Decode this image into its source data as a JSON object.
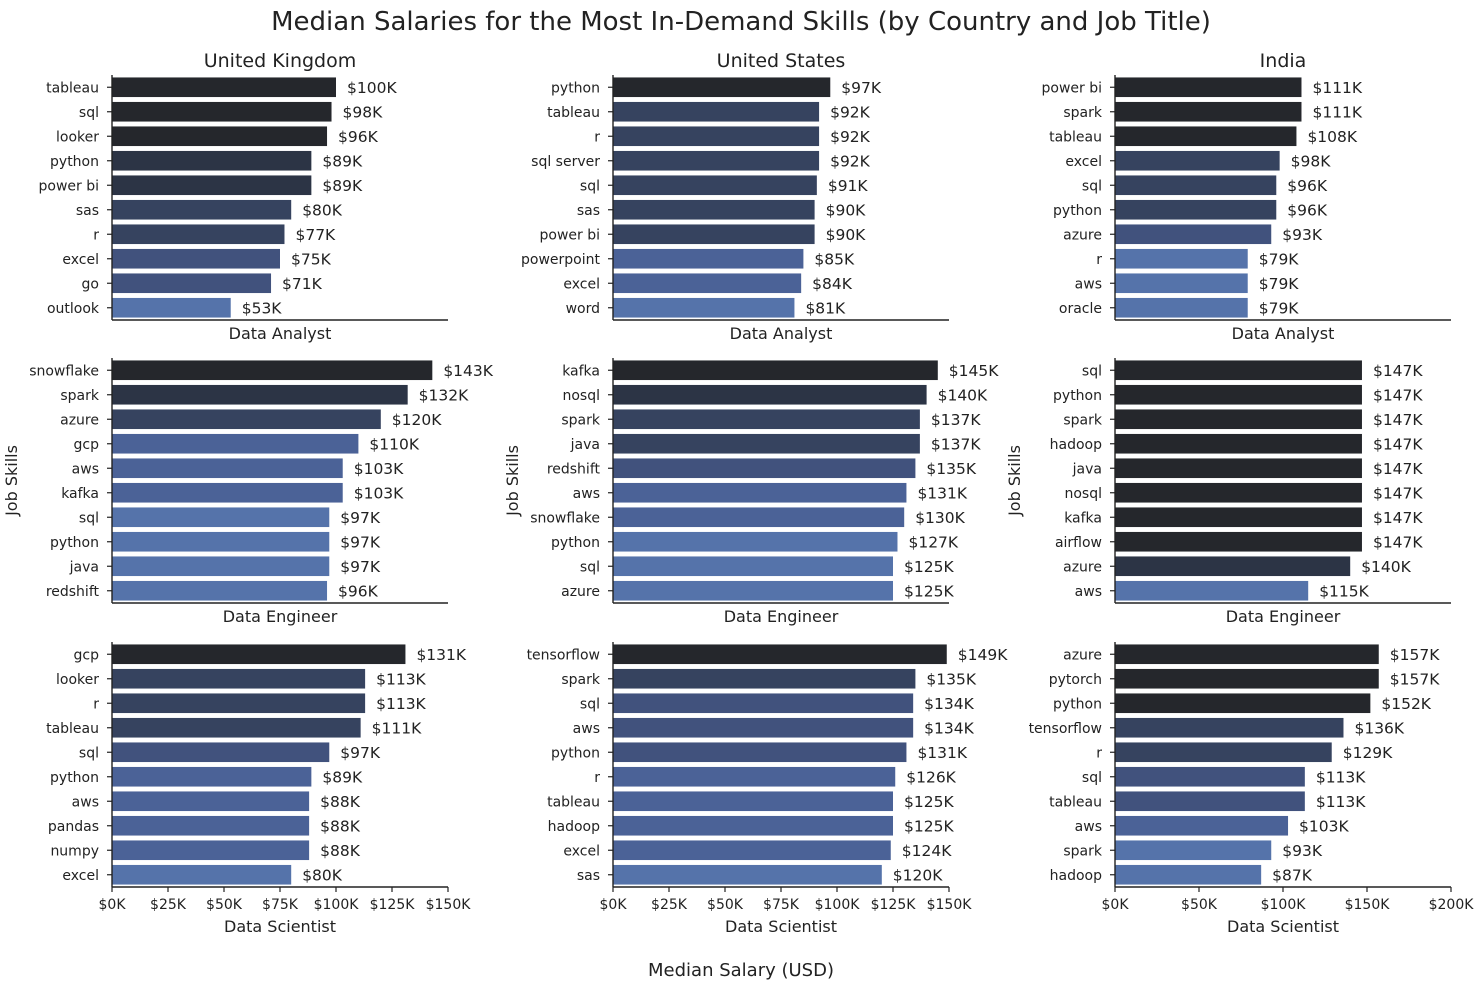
{
  "figure": {
    "title": "Median Salaries for the Most In-Demand Skills (by Country and Job Title)",
    "xlabel": "Median Salary (USD)",
    "ylabel": "Job Skills"
  },
  "chart_data": [
    {
      "type": "bar",
      "orientation": "horizontal",
      "title": "United Kingdom",
      "xlabel": "Data Analyst",
      "ylabel": "",
      "categories": [
        "tableau",
        "sql",
        "looker",
        "python",
        "power bi",
        "sas",
        "r",
        "excel",
        "go",
        "outlook"
      ],
      "values": [
        100000,
        98000,
        96000,
        89000,
        89000,
        80000,
        77000,
        75000,
        71000,
        53000
      ],
      "data_labels": [
        "$100K",
        "$98K",
        "$96K",
        "$89K",
        "$89K",
        "$80K",
        "$77K",
        "$75K",
        "$71K",
        "$53K"
      ],
      "xlim": [
        0,
        150000
      ],
      "xticks": [
        0,
        25000,
        50000,
        75000,
        100000,
        125000,
        150000
      ],
      "xtick_labels": [
        "$0K",
        "$25K",
        "$50K",
        "$75K",
        "$100K",
        "$125K",
        "$150K"
      ],
      "show_xticks": false
    },
    {
      "type": "bar",
      "orientation": "horizontal",
      "title": "United States",
      "xlabel": "Data Analyst",
      "ylabel": "",
      "categories": [
        "python",
        "tableau",
        "r",
        "sql server",
        "sql",
        "sas",
        "power bi",
        "powerpoint",
        "excel",
        "word"
      ],
      "values": [
        97000,
        92000,
        92000,
        92000,
        91000,
        90000,
        90000,
        85000,
        84000,
        81000
      ],
      "data_labels": [
        "$97K",
        "$92K",
        "$92K",
        "$92K",
        "$91K",
        "$90K",
        "$90K",
        "$85K",
        "$84K",
        "$81K"
      ],
      "xlim": [
        0,
        150000
      ],
      "xticks": [
        0,
        25000,
        50000,
        75000,
        100000,
        125000,
        150000
      ],
      "xtick_labels": [
        "$0K",
        "$25K",
        "$50K",
        "$75K",
        "$100K",
        "$125K",
        "$150K"
      ],
      "show_xticks": false
    },
    {
      "type": "bar",
      "orientation": "horizontal",
      "title": "India",
      "xlabel": "Data Analyst",
      "ylabel": "",
      "categories": [
        "power bi",
        "spark",
        "tableau",
        "excel",
        "sql",
        "python",
        "azure",
        "r",
        "aws",
        "oracle"
      ],
      "values": [
        111000,
        111000,
        108000,
        98000,
        96000,
        96000,
        93000,
        79000,
        79000,
        79000
      ],
      "data_labels": [
        "$111K",
        "$111K",
        "$108K",
        "$98K",
        "$96K",
        "$96K",
        "$93K",
        "$79K",
        "$79K",
        "$79K"
      ],
      "xlim": [
        0,
        200000
      ],
      "xticks": [
        0,
        50000,
        100000,
        150000,
        200000
      ],
      "xtick_labels": [
        "$0K",
        "$50K",
        "$100K",
        "$150K",
        "$200K"
      ],
      "show_xticks": false
    },
    {
      "type": "bar",
      "orientation": "horizontal",
      "title": "",
      "xlabel": "Data Engineer",
      "ylabel": "Job Skills",
      "categories": [
        "snowflake",
        "spark",
        "azure",
        "gcp",
        "aws",
        "kafka",
        "sql",
        "python",
        "java",
        "redshift"
      ],
      "values": [
        143000,
        132000,
        120000,
        110000,
        103000,
        103000,
        97000,
        97000,
        97000,
        96000
      ],
      "data_labels": [
        "$143K",
        "$132K",
        "$120K",
        "$110K",
        "$103K",
        "$103K",
        "$97K",
        "$97K",
        "$97K",
        "$96K"
      ],
      "xlim": [
        0,
        150000
      ],
      "xticks": [
        0,
        25000,
        50000,
        75000,
        100000,
        125000,
        150000
      ],
      "xtick_labels": [
        "$0K",
        "$25K",
        "$50K",
        "$75K",
        "$100K",
        "$125K",
        "$150K"
      ],
      "show_xticks": false
    },
    {
      "type": "bar",
      "orientation": "horizontal",
      "title": "",
      "xlabel": "Data Engineer",
      "ylabel": "Job Skills",
      "categories": [
        "kafka",
        "nosql",
        "spark",
        "java",
        "redshift",
        "aws",
        "snowflake",
        "python",
        "sql",
        "azure"
      ],
      "values": [
        145000,
        140000,
        137000,
        137000,
        135000,
        131000,
        130000,
        127000,
        125000,
        125000
      ],
      "data_labels": [
        "$145K",
        "$140K",
        "$137K",
        "$137K",
        "$135K",
        "$131K",
        "$130K",
        "$127K",
        "$125K",
        "$125K"
      ],
      "xlim": [
        0,
        150000
      ],
      "xticks": [
        0,
        25000,
        50000,
        75000,
        100000,
        125000,
        150000
      ],
      "xtick_labels": [
        "$0K",
        "$25K",
        "$50K",
        "$75K",
        "$100K",
        "$125K",
        "$150K"
      ],
      "show_xticks": false
    },
    {
      "type": "bar",
      "orientation": "horizontal",
      "title": "",
      "xlabel": "Data Engineer",
      "ylabel": "Job Skills",
      "categories": [
        "sql",
        "python",
        "spark",
        "hadoop",
        "java",
        "nosql",
        "kafka",
        "airflow",
        "azure",
        "aws"
      ],
      "values": [
        147000,
        147000,
        147000,
        147000,
        147000,
        147000,
        147000,
        147000,
        140000,
        115000
      ],
      "data_labels": [
        "$147K",
        "$147K",
        "$147K",
        "$147K",
        "$147K",
        "$147K",
        "$147K",
        "$147K",
        "$140K",
        "$115K"
      ],
      "xlim": [
        0,
        200000
      ],
      "xticks": [
        0,
        50000,
        100000,
        150000,
        200000
      ],
      "xtick_labels": [
        "$0K",
        "$50K",
        "$100K",
        "$150K",
        "$200K"
      ],
      "show_xticks": false
    },
    {
      "type": "bar",
      "orientation": "horizontal",
      "title": "",
      "xlabel": "Data Scientist",
      "ylabel": "",
      "categories": [
        "gcp",
        "looker",
        "r",
        "tableau",
        "sql",
        "python",
        "aws",
        "pandas",
        "numpy",
        "excel"
      ],
      "values": [
        131000,
        113000,
        113000,
        111000,
        97000,
        89000,
        88000,
        88000,
        88000,
        80000
      ],
      "data_labels": [
        "$131K",
        "$113K",
        "$113K",
        "$111K",
        "$97K",
        "$89K",
        "$88K",
        "$88K",
        "$88K",
        "$80K"
      ],
      "xlim": [
        0,
        150000
      ],
      "xticks": [
        0,
        25000,
        50000,
        75000,
        100000,
        125000,
        150000
      ],
      "xtick_labels": [
        "$0K",
        "$25K",
        "$50K",
        "$75K",
        "$100K",
        "$125K",
        "$150K"
      ],
      "show_xticks": true
    },
    {
      "type": "bar",
      "orientation": "horizontal",
      "title": "",
      "xlabel": "Data Scientist",
      "ylabel": "",
      "categories": [
        "tensorflow",
        "spark",
        "sql",
        "aws",
        "python",
        "r",
        "tableau",
        "hadoop",
        "excel",
        "sas"
      ],
      "values": [
        149000,
        135000,
        134000,
        134000,
        131000,
        126000,
        125000,
        125000,
        124000,
        120000
      ],
      "data_labels": [
        "$149K",
        "$135K",
        "$134K",
        "$134K",
        "$131K",
        "$126K",
        "$125K",
        "$125K",
        "$124K",
        "$120K"
      ],
      "xlim": [
        0,
        150000
      ],
      "xticks": [
        0,
        25000,
        50000,
        75000,
        100000,
        125000,
        150000
      ],
      "xtick_labels": [
        "$0K",
        "$25K",
        "$50K",
        "$75K",
        "$100K",
        "$125K",
        "$150K"
      ],
      "show_xticks": true
    },
    {
      "type": "bar",
      "orientation": "horizontal",
      "title": "",
      "xlabel": "Data Scientist",
      "ylabel": "",
      "categories": [
        "azure",
        "pytorch",
        "python",
        "tensorflow",
        "r",
        "sql",
        "tableau",
        "aws",
        "spark",
        "hadoop"
      ],
      "values": [
        157000,
        157000,
        152000,
        136000,
        129000,
        113000,
        113000,
        103000,
        93000,
        87000
      ],
      "data_labels": [
        "$157K",
        "$157K",
        "$152K",
        "$136K",
        "$129K",
        "$113K",
        "$113K",
        "$103K",
        "$93K",
        "$87K"
      ],
      "xlim": [
        0,
        200000
      ],
      "xticks": [
        0,
        50000,
        100000,
        150000,
        200000
      ],
      "xtick_labels": [
        "$0K",
        "$50K",
        "$100K",
        "$150K",
        "$200K"
      ],
      "show_xticks": true
    }
  ],
  "colors": {
    "palette": [
      "#25272c",
      "#2c3445",
      "#36435f",
      "#41527d",
      "#4b6297",
      "#5573aa"
    ],
    "axis": "#222222",
    "text": "#222222"
  }
}
